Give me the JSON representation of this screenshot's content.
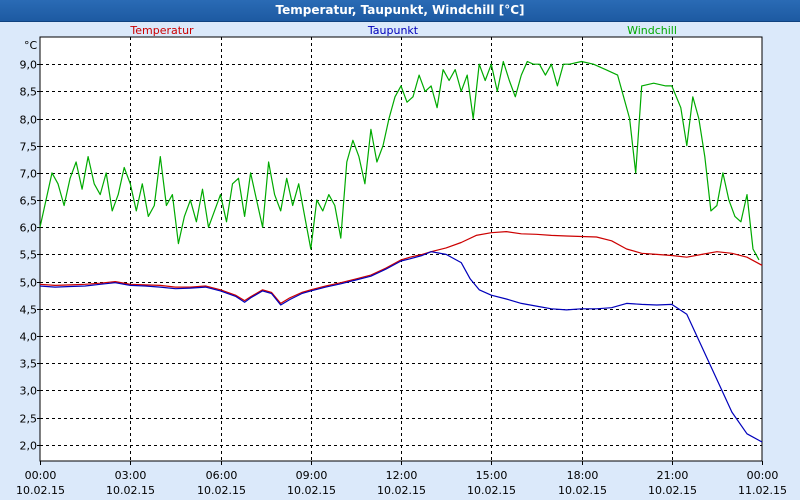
{
  "title": "Temperatur, Taupunkt, Windchill [°C]",
  "colors": {
    "temperatur": "#cc0000",
    "taupunkt": "#0000bb",
    "windchill": "#00aa00",
    "background": "#dbe9fa",
    "plot_background": "#ffffff"
  },
  "chart_data": {
    "type": "line",
    "title": "Temperatur, Taupunkt, Windchill [°C]",
    "unit_label": "°C",
    "ylim": [
      1.7,
      9.5
    ],
    "xlim": [
      0,
      24
    ],
    "grid": true,
    "legend_placement": "top",
    "y_ticks": [
      {
        "value": 9.0,
        "label": "9,0"
      },
      {
        "value": 8.5,
        "label": "8,5"
      },
      {
        "value": 8.0,
        "label": "8,0"
      },
      {
        "value": 7.5,
        "label": "7,5"
      },
      {
        "value": 7.0,
        "label": "7,0"
      },
      {
        "value": 6.5,
        "label": "6,5"
      },
      {
        "value": 6.0,
        "label": "6,0"
      },
      {
        "value": 5.5,
        "label": "5,5"
      },
      {
        "value": 5.0,
        "label": "5,0"
      },
      {
        "value": 4.5,
        "label": "4,5"
      },
      {
        "value": 4.0,
        "label": "4,0"
      },
      {
        "value": 3.5,
        "label": "3,5"
      },
      {
        "value": 3.0,
        "label": "3,0"
      },
      {
        "value": 2.5,
        "label": "2,5"
      },
      {
        "value": 2.0,
        "label": "2,0"
      }
    ],
    "x_ticks": [
      {
        "value": 0,
        "time": "00:00",
        "date": "10.02.15"
      },
      {
        "value": 3,
        "time": "03:00",
        "date": "10.02.15"
      },
      {
        "value": 6,
        "time": "06:00",
        "date": "10.02.15"
      },
      {
        "value": 9,
        "time": "09:00",
        "date": "10.02.15"
      },
      {
        "value": 12,
        "time": "12:00",
        "date": "10.02.15"
      },
      {
        "value": 15,
        "time": "15:00",
        "date": "10.02.15"
      },
      {
        "value": 18,
        "time": "18:00",
        "date": "10.02.15"
      },
      {
        "value": 21,
        "time": "21:00",
        "date": "10.02.15"
      },
      {
        "value": 24,
        "time": "00:00",
        "date": "11.02.15"
      }
    ],
    "series": [
      {
        "name": "Temperatur",
        "color": "#cc0000",
        "points": [
          [
            0,
            4.95
          ],
          [
            0.5,
            4.93
          ],
          [
            1,
            4.94
          ],
          [
            1.5,
            4.95
          ],
          [
            2,
            4.97
          ],
          [
            2.5,
            5.0
          ],
          [
            3,
            4.95
          ],
          [
            3.5,
            4.94
          ],
          [
            4,
            4.93
          ],
          [
            4.5,
            4.9
          ],
          [
            5,
            4.9
          ],
          [
            5.5,
            4.92
          ],
          [
            6,
            4.85
          ],
          [
            6.5,
            4.75
          ],
          [
            6.8,
            4.65
          ],
          [
            7,
            4.72
          ],
          [
            7.4,
            4.85
          ],
          [
            7.7,
            4.8
          ],
          [
            8,
            4.6
          ],
          [
            8.3,
            4.7
          ],
          [
            8.7,
            4.8
          ],
          [
            9,
            4.85
          ],
          [
            9.5,
            4.92
          ],
          [
            10,
            4.98
          ],
          [
            10.5,
            5.05
          ],
          [
            11,
            5.12
          ],
          [
            11.5,
            5.25
          ],
          [
            12,
            5.4
          ],
          [
            12.3,
            5.45
          ],
          [
            12.7,
            5.5
          ],
          [
            13,
            5.55
          ],
          [
            13.5,
            5.62
          ],
          [
            14,
            5.72
          ],
          [
            14.5,
            5.85
          ],
          [
            15,
            5.9
          ],
          [
            15.5,
            5.92
          ],
          [
            16,
            5.88
          ],
          [
            16.5,
            5.87
          ],
          [
            17,
            5.85
          ],
          [
            17.5,
            5.84
          ],
          [
            18,
            5.83
          ],
          [
            18.5,
            5.82
          ],
          [
            19,
            5.75
          ],
          [
            19.5,
            5.6
          ],
          [
            20,
            5.52
          ],
          [
            20.5,
            5.5
          ],
          [
            21,
            5.48
          ],
          [
            21.5,
            5.45
          ],
          [
            22,
            5.5
          ],
          [
            22.5,
            5.55
          ],
          [
            23,
            5.52
          ],
          [
            23.5,
            5.45
          ],
          [
            24,
            5.3
          ]
        ]
      },
      {
        "name": "Taupunkt",
        "color": "#0000bb",
        "points": [
          [
            0,
            4.92
          ],
          [
            0.5,
            4.9
          ],
          [
            1,
            4.91
          ],
          [
            1.5,
            4.92
          ],
          [
            2,
            4.95
          ],
          [
            2.5,
            4.98
          ],
          [
            3,
            4.93
          ],
          [
            3.5,
            4.92
          ],
          [
            4,
            4.9
          ],
          [
            4.5,
            4.87
          ],
          [
            5,
            4.88
          ],
          [
            5.5,
            4.9
          ],
          [
            6,
            4.83
          ],
          [
            6.5,
            4.73
          ],
          [
            6.8,
            4.62
          ],
          [
            7,
            4.7
          ],
          [
            7.4,
            4.83
          ],
          [
            7.7,
            4.78
          ],
          [
            8,
            4.57
          ],
          [
            8.3,
            4.67
          ],
          [
            8.7,
            4.78
          ],
          [
            9,
            4.83
          ],
          [
            9.5,
            4.9
          ],
          [
            10,
            4.96
          ],
          [
            10.5,
            5.03
          ],
          [
            11,
            5.1
          ],
          [
            11.5,
            5.23
          ],
          [
            12,
            5.38
          ],
          [
            12.3,
            5.42
          ],
          [
            12.7,
            5.48
          ],
          [
            13,
            5.55
          ],
          [
            13.5,
            5.5
          ],
          [
            14,
            5.35
          ],
          [
            14.3,
            5.05
          ],
          [
            14.6,
            4.85
          ],
          [
            15,
            4.75
          ],
          [
            15.5,
            4.68
          ],
          [
            16,
            4.6
          ],
          [
            16.5,
            4.55
          ],
          [
            17,
            4.5
          ],
          [
            17.5,
            4.48
          ],
          [
            18,
            4.5
          ],
          [
            18.5,
            4.5
          ],
          [
            19,
            4.52
          ],
          [
            19.5,
            4.6
          ],
          [
            20,
            4.58
          ],
          [
            20.5,
            4.57
          ],
          [
            21,
            4.58
          ],
          [
            21.5,
            4.4
          ],
          [
            22,
            3.8
          ],
          [
            22.5,
            3.2
          ],
          [
            23,
            2.6
          ],
          [
            23.5,
            2.2
          ],
          [
            24,
            2.05
          ]
        ]
      },
      {
        "name": "Windchill",
        "color": "#00aa00",
        "points": [
          [
            0,
            6.0
          ],
          [
            0.2,
            6.5
          ],
          [
            0.4,
            7.0
          ],
          [
            0.6,
            6.8
          ],
          [
            0.8,
            6.4
          ],
          [
            1,
            6.9
          ],
          [
            1.2,
            7.2
          ],
          [
            1.4,
            6.7
          ],
          [
            1.6,
            7.3
          ],
          [
            1.8,
            6.8
          ],
          [
            2,
            6.6
          ],
          [
            2.2,
            7.0
          ],
          [
            2.4,
            6.3
          ],
          [
            2.6,
            6.6
          ],
          [
            2.8,
            7.1
          ],
          [
            3,
            6.8
          ],
          [
            3.2,
            6.3
          ],
          [
            3.4,
            6.8
          ],
          [
            3.6,
            6.2
          ],
          [
            3.8,
            6.4
          ],
          [
            4,
            7.3
          ],
          [
            4.2,
            6.4
          ],
          [
            4.4,
            6.6
          ],
          [
            4.6,
            5.7
          ],
          [
            4.8,
            6.2
          ],
          [
            5,
            6.5
          ],
          [
            5.2,
            6.1
          ],
          [
            5.4,
            6.7
          ],
          [
            5.6,
            6.0
          ],
          [
            5.8,
            6.3
          ],
          [
            6,
            6.6
          ],
          [
            6.2,
            6.1
          ],
          [
            6.4,
            6.8
          ],
          [
            6.6,
            6.9
          ],
          [
            6.8,
            6.2
          ],
          [
            7,
            7.0
          ],
          [
            7.2,
            6.5
          ],
          [
            7.4,
            6.0
          ],
          [
            7.6,
            7.2
          ],
          [
            7.8,
            6.6
          ],
          [
            8,
            6.3
          ],
          [
            8.2,
            6.9
          ],
          [
            8.4,
            6.4
          ],
          [
            8.6,
            6.8
          ],
          [
            8.8,
            6.2
          ],
          [
            9,
            5.6
          ],
          [
            9.2,
            6.5
          ],
          [
            9.4,
            6.3
          ],
          [
            9.6,
            6.6
          ],
          [
            9.8,
            6.4
          ],
          [
            10,
            5.8
          ],
          [
            10.2,
            7.2
          ],
          [
            10.4,
            7.6
          ],
          [
            10.6,
            7.3
          ],
          [
            10.8,
            6.8
          ],
          [
            11,
            7.8
          ],
          [
            11.2,
            7.2
          ],
          [
            11.4,
            7.5
          ],
          [
            11.6,
            8.0
          ],
          [
            11.8,
            8.4
          ],
          [
            12,
            8.6
          ],
          [
            12.2,
            8.3
          ],
          [
            12.4,
            8.4
          ],
          [
            12.6,
            8.8
          ],
          [
            12.8,
            8.5
          ],
          [
            13,
            8.6
          ],
          [
            13.2,
            8.2
          ],
          [
            13.4,
            8.9
          ],
          [
            13.6,
            8.7
          ],
          [
            13.8,
            8.9
          ],
          [
            14,
            8.5
          ],
          [
            14.2,
            8.8
          ],
          [
            14.4,
            8.0
          ],
          [
            14.6,
            9.0
          ],
          [
            14.8,
            8.7
          ],
          [
            15,
            9.0
          ],
          [
            15.2,
            8.5
          ],
          [
            15.4,
            9.05
          ],
          [
            15.6,
            8.7
          ],
          [
            15.8,
            8.4
          ],
          [
            16,
            8.8
          ],
          [
            16.2,
            9.05
          ],
          [
            16.4,
            9.0
          ],
          [
            16.6,
            9.0
          ],
          [
            16.8,
            8.8
          ],
          [
            17,
            9.0
          ],
          [
            17.2,
            8.6
          ],
          [
            17.4,
            9.0
          ],
          [
            17.6,
            9.0
          ],
          [
            18,
            9.05
          ],
          [
            18.4,
            9.0
          ],
          [
            18.8,
            8.9
          ],
          [
            19.2,
            8.8
          ],
          [
            19.4,
            8.4
          ],
          [
            19.6,
            8.0
          ],
          [
            19.8,
            7.0
          ],
          [
            20,
            8.6
          ],
          [
            20.4,
            8.65
          ],
          [
            20.8,
            8.6
          ],
          [
            21,
            8.6
          ],
          [
            21.3,
            8.2
          ],
          [
            21.5,
            7.5
          ],
          [
            21.7,
            8.4
          ],
          [
            21.9,
            8.0
          ],
          [
            22.1,
            7.3
          ],
          [
            22.3,
            6.3
          ],
          [
            22.5,
            6.4
          ],
          [
            22.7,
            7.0
          ],
          [
            22.9,
            6.5
          ],
          [
            23.1,
            6.2
          ],
          [
            23.3,
            6.1
          ],
          [
            23.5,
            6.6
          ],
          [
            23.7,
            5.6
          ],
          [
            23.9,
            5.4
          ]
        ]
      }
    ]
  }
}
